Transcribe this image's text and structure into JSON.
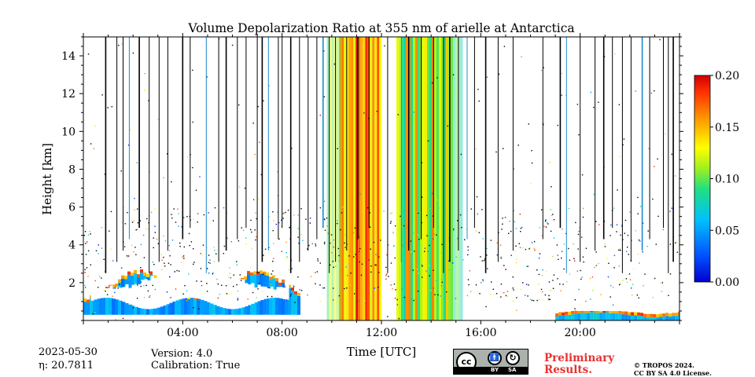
{
  "chart_data": {
    "type": "heatmap",
    "title": "Volume Depolarization Ratio at 355 nm of arielle at Antarctica",
    "xlabel": "Time [UTC]",
    "ylabel": "Height [km]",
    "xlim_hours": [
      0,
      24
    ],
    "ylim": [
      0,
      15
    ],
    "x_ticks": [
      {
        "value": 4,
        "label": "04:00"
      },
      {
        "value": 8,
        "label": "08:00"
      },
      {
        "value": 12,
        "label": "12:00"
      },
      {
        "value": 16,
        "label": "16:00"
      },
      {
        "value": 20,
        "label": "20:00"
      }
    ],
    "y_ticks": [
      {
        "value": 2,
        "label": "2"
      },
      {
        "value": 4,
        "label": "4"
      },
      {
        "value": 6,
        "label": "6"
      },
      {
        "value": 8,
        "label": "8"
      },
      {
        "value": 10,
        "label": "10"
      },
      {
        "value": 12,
        "label": "12"
      },
      {
        "value": 14,
        "label": "14"
      }
    ],
    "colorbar": {
      "vmin": 0.0,
      "vmax": 0.2,
      "colormap": "jet",
      "ticks": [
        {
          "value": 0.0,
          "label": "0.00"
        },
        {
          "value": 0.05,
          "label": "0.05"
        },
        {
          "value": 0.1,
          "label": "0.10"
        },
        {
          "value": 0.15,
          "label": "0.15"
        },
        {
          "value": 0.2,
          "label": "0.20"
        }
      ]
    },
    "features": {
      "boundary_layer": [
        {
          "start_h": 0.0,
          "end_h": 8.7,
          "base_km": 0.3,
          "top_km": 2.3,
          "value": 0.05
        },
        {
          "start_h": 19.0,
          "end_h": 24.0,
          "base_km": 0.0,
          "top_km": 0.4,
          "value": 0.06
        }
      ],
      "precipitation_columns": [
        {
          "start_h": 10.3,
          "end_h": 12.0,
          "value": 0.16
        },
        {
          "start_h": 12.6,
          "end_h": 14.8,
          "value": 0.12
        }
      ],
      "data_gaps": [
        {
          "start_h": 12.0,
          "end_h": 12.6
        }
      ]
    }
  },
  "footer": {
    "date": "2023-05-30",
    "eta": "η: 20.7811",
    "version": "Version: 4.0",
    "calibration": "Calibration: True",
    "preliminary_line1": "Preliminary",
    "preliminary_line2": "Results.",
    "copyright_line1": "© TROPOS 2024.",
    "copyright_line2": "CC BY SA 4.0 License.",
    "license_badge": {
      "cc": "cc",
      "by": "BY",
      "sa": "SA"
    }
  }
}
